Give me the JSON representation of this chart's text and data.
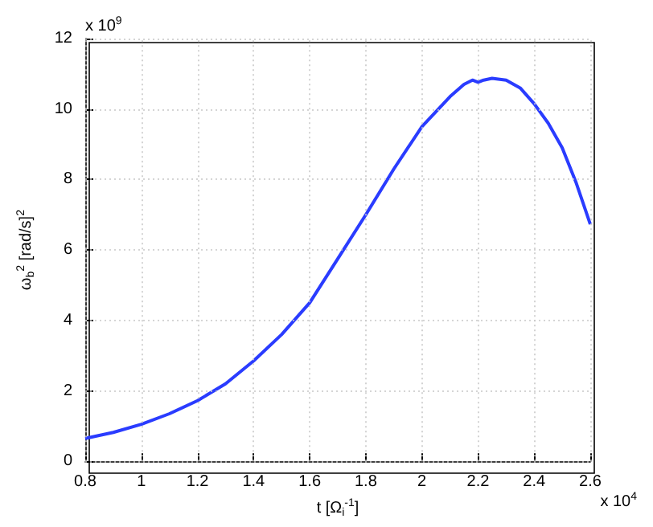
{
  "chart_data": {
    "type": "line",
    "xlabel": "t [Ω$_{i}$$^{-1}$]",
    "ylabel": "ω$_{b}$$^{2}$ [rad/s]$^{2}$",
    "annotations": [
      "x 10$^{9}$",
      "x 10$^{4}$"
    ],
    "x": [
      0.8,
      0.9,
      1.0,
      1.1,
      1.2,
      1.3,
      1.4,
      1.5,
      1.6,
      1.7,
      1.8,
      1.9,
      1.95,
      2.0,
      2.1,
      2.15,
      2.18,
      2.2,
      2.22,
      2.25,
      2.3,
      2.35,
      2.4,
      2.45,
      2.5,
      2.55,
      2.6
    ],
    "series": [
      {
        "color": "#2a3cff",
        "values": [
          0.65,
          0.82,
          1.05,
          1.35,
          1.72,
          2.2,
          2.85,
          3.6,
          4.5,
          5.75,
          7.0,
          8.3,
          8.9,
          9.5,
          10.35,
          10.7,
          10.82,
          10.76,
          10.82,
          10.87,
          10.82,
          10.6,
          10.15,
          9.6,
          8.9,
          7.9,
          6.73
        ]
      }
    ],
    "xlim": [
      0.8,
      2.6
    ],
    "xticks": [
      0.8,
      1,
      1.2,
      1.4,
      1.6,
      1.8,
      2,
      2.2,
      2.4,
      2.6
    ],
    "ylim": [
      0,
      12
    ],
    "yticks": [
      0,
      2,
      4,
      6,
      8,
      10,
      12
    ],
    "grid": true,
    "marker": "none",
    "line_style": "solid"
  }
}
